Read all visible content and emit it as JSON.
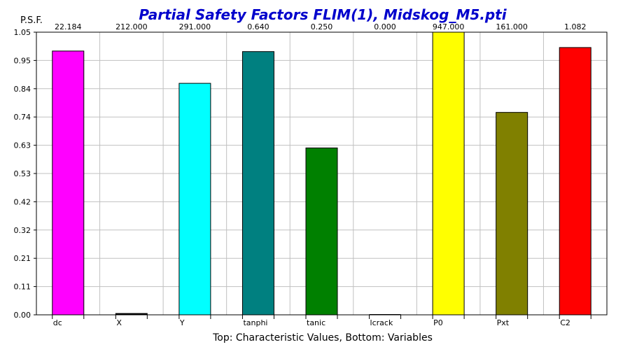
{
  "chart_data": {
    "type": "bar",
    "title": "Partial Safety Factors FLIM(1), Midskog_M5.pti",
    "ylabel": "P.S.F.",
    "xlabel": "Top: Characteristic Values, Bottom: Variables",
    "ylim": [
      0.0,
      1.05
    ],
    "yticks": [
      "1.05",
      "0.95",
      "0.84",
      "0.74",
      "0.63",
      "0.53",
      "0.42",
      "0.32",
      "0.21",
      "0.11",
      "0.00"
    ],
    "grid": true,
    "legend": "none",
    "categories": [
      "dc",
      "X",
      "Y",
      "tanphi",
      "tanic",
      "lcrack",
      "P0",
      "Pxt",
      "C2"
    ],
    "top_labels": [
      "22.184",
      "212.000",
      "291.000",
      "0.640",
      "0.250",
      "0.000",
      "947.000",
      "161.000",
      "1.082"
    ],
    "values": [
      0.98,
      0.005,
      0.86,
      0.978,
      0.62,
      0.0,
      1.05,
      0.752,
      0.993
    ],
    "colors": [
      "#ff00ff",
      "#000000",
      "#00ffff",
      "#008080",
      "#008000",
      "#ffffff",
      "#ffff00",
      "#808000",
      "#ff0000"
    ],
    "title_color": "#0000cc"
  }
}
